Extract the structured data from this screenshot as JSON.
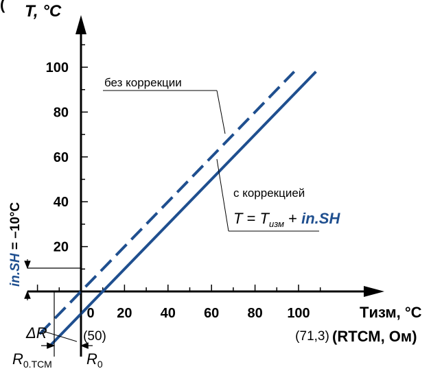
{
  "chart_data": {
    "type": "line",
    "header_text": "(      ",
    "y_axis_label": "T, °C",
    "x_axis_label": "Tизм, °C",
    "x_axis_label_sub": "(RТСМ, Ом)",
    "x_ticks": [
      "0",
      "20",
      "40",
      "60",
      "80",
      "100"
    ],
    "x_tick_sublabels": [
      {
        "x": 0,
        "text": "(50)"
      },
      {
        "x": 100,
        "text": "(71,3)"
      }
    ],
    "y_ticks": [
      "20",
      "40",
      "60",
      "80",
      "100"
    ],
    "xlim": [
      -25,
      115
    ],
    "ylim": [
      -10,
      112
    ],
    "series": [
      {
        "name": "без коррекции",
        "style": "dashed",
        "color": "#1f4f8f",
        "x": [
          -19,
          98
        ],
        "y": [
          -19,
          98
        ]
      },
      {
        "name": "с коррекцией",
        "style": "solid",
        "color": "#1f4f8f",
        "x": [
          -14,
          108
        ],
        "y": [
          -24,
          98
        ]
      }
    ],
    "annotations": {
      "no_correction": "без коррекции",
      "with_correction": "с коррекцией",
      "formula": "T = Tизм + in.SH",
      "formula_T": "T",
      "formula_eq": " = ",
      "formula_Tizm": "T",
      "formula_izm_sub": "изм",
      "formula_plus": " + ",
      "formula_insh": "in.SH",
      "shift_label_blue": "in.SH",
      "shift_label_rest": " = –10°C",
      "delta_r": "ΔR",
      "r0tcm": "R",
      "r0tcm_sub": "0.ТСМ",
      "r0": "R",
      "r0_sub": "0"
    },
    "colors": {
      "line": "#1f4f8f",
      "axis": "#000000"
    }
  }
}
